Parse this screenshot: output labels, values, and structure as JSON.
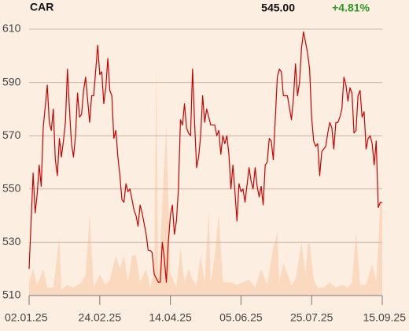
{
  "chart_data": {
    "type": "line",
    "symbol": "CAR",
    "price": {
      "value": 545,
      "label": "545.00"
    },
    "change": {
      "value": 4.81,
      "label": "+4.81%"
    },
    "change_color": "#2b9a1e",
    "xlim": [
      0,
      175
    ],
    "xticks": [
      {
        "value": 0,
        "label": "02.01.25"
      },
      {
        "value": 35,
        "label": "24.02.25"
      },
      {
        "value": 70,
        "label": "14.04.25"
      },
      {
        "value": 105,
        "label": "05.06.25"
      },
      {
        "value": 140,
        "label": "25.07.25"
      },
      {
        "value": 175,
        "label": "15.09.25"
      }
    ],
    "ylim": [
      510,
      610
    ],
    "yticks": [
      510,
      530,
      550,
      570,
      590,
      610
    ],
    "y2lim": [
      0,
      100
    ],
    "grid": true,
    "series": [
      {
        "color": "#cc0000",
        "x": [
          0,
          2,
          3,
          4,
          5,
          6,
          7,
          9,
          10,
          11,
          12,
          13,
          14,
          15,
          16,
          17,
          18,
          19,
          20,
          21,
          22,
          23,
          24,
          25,
          26,
          27,
          28,
          30,
          31,
          32,
          34,
          35,
          36,
          37,
          38,
          39,
          40,
          41,
          42,
          43,
          44,
          45,
          46,
          47,
          48,
          49,
          50,
          52,
          53,
          54,
          55,
          56,
          58,
          59,
          60,
          61,
          62,
          64,
          65,
          66,
          67,
          68,
          69,
          70,
          71,
          72,
          73,
          74,
          75,
          76,
          77,
          78,
          79,
          80,
          81,
          82,
          83,
          84,
          85,
          86,
          87,
          88,
          89,
          90,
          92,
          93,
          94,
          95,
          96,
          97,
          98,
          99,
          100,
          101,
          102,
          103,
          104,
          105,
          106,
          107,
          109,
          110,
          111,
          112,
          113,
          114,
          115,
          116,
          117,
          118,
          119,
          120,
          121,
          123,
          124,
          125,
          126,
          127,
          128,
          130,
          131,
          132,
          133,
          134,
          135,
          136,
          138,
          139,
          140,
          141,
          142,
          143,
          144,
          145,
          147,
          148,
          149,
          150,
          151,
          152,
          153,
          154,
          155,
          156,
          157,
          158,
          159,
          160,
          161,
          162,
          163,
          164,
          165,
          166,
          167,
          168,
          169,
          170,
          171,
          172,
          173,
          174,
          175
        ],
        "values": [
          520,
          556,
          541,
          548,
          559,
          551,
          573,
          589,
          575,
          572,
          580,
          561,
          555,
          569,
          562,
          568,
          575,
          595,
          580,
          567,
          562,
          570,
          586,
          577,
          578,
          587,
          592,
          575,
          585,
          585,
          604,
          593,
          594,
          582,
          588,
          599,
          587,
          585,
          569,
          572,
          562,
          555,
          546,
          545,
          552,
          549,
          550,
          542,
          540,
          536,
          544,
          541,
          533,
          527,
          527,
          526,
          518,
          515,
          515,
          530,
          524,
          515,
          530,
          540,
          544,
          533,
          538,
          550,
          576,
          574,
          582,
          573,
          571,
          570,
          595,
          575,
          558,
          562,
          570,
          585,
          575,
          580,
          577,
          574,
          574,
          570,
          572,
          563,
          570,
          567,
          570,
          563,
          550,
          559,
          549,
          538,
          552,
          549,
          550,
          545,
          558,
          553,
          550,
          558,
          551,
          547,
          551,
          544,
          559,
          560,
          569,
          568,
          561,
          592,
          595,
          594,
          585,
          585,
          585,
          576,
          584,
          597,
          585,
          590,
          603,
          609,
          601,
          595,
          577,
          568,
          566,
          567,
          555,
          564,
          566,
          571,
          575,
          573,
          565,
          575,
          575,
          577,
          580,
          592,
          589,
          583,
          588,
          586,
          571,
          572,
          585,
          587,
          577,
          579,
          565,
          569,
          570,
          567,
          559,
          568,
          543,
          545,
          545
        ]
      },
      {
        "color": "#fbd9bf",
        "axis": "y2",
        "x": [
          0,
          2,
          4,
          7,
          9,
          12,
          15,
          16,
          19,
          22,
          26,
          28,
          30,
          32,
          35,
          38,
          40,
          43,
          45,
          47,
          49,
          51,
          53,
          55,
          58,
          60,
          62,
          63,
          64,
          68,
          70,
          73,
          75,
          77,
          79,
          81,
          83,
          85,
          87,
          89,
          90,
          92,
          94,
          96,
          98,
          100,
          103,
          106,
          109,
          112,
          115,
          118,
          121,
          123,
          124,
          126,
          128,
          130,
          132,
          135,
          137,
          138,
          139,
          141,
          143,
          146,
          149,
          152,
          155,
          158,
          160,
          162,
          164,
          167,
          170,
          172,
          174,
          175
        ],
        "values": [
          5,
          10,
          4,
          10,
          3,
          3,
          22,
          2,
          4,
          3,
          5,
          8,
          31,
          3,
          8,
          4,
          6,
          15,
          10,
          15,
          5,
          15,
          15,
          5,
          10,
          3,
          8,
          87,
          5,
          64,
          8,
          3,
          18,
          5,
          10,
          6,
          4,
          15,
          5,
          32,
          5,
          15,
          31,
          5,
          5,
          5,
          4,
          5,
          6,
          3,
          10,
          4,
          18,
          24,
          5,
          12,
          8,
          4,
          6,
          20,
          8,
          19,
          20,
          6,
          3,
          3,
          5,
          3,
          4,
          3,
          5,
          24,
          4,
          4,
          12,
          5,
          35,
          35
        ]
      }
    ]
  }
}
